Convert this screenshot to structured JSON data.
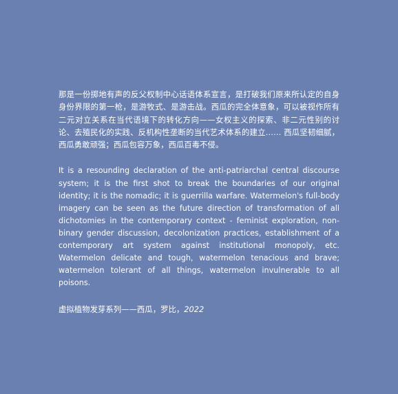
{
  "text": {
    "chinese_paragraph": "那是一份掷地有声的反父权制中心话语体系宣言，是打破我们原来所认定的自身身份界限的第一枪，是游牧式、是游击战。西瓜的完全体意象，可以被视作所有二元对立关系在当代语境下的转化方向——女权主义的探索、非二元性别的讨论、去殖民化的实践、反机构性垄断的当代艺术体系的建立…… 西瓜坚韧细腻，西瓜勇敢顽强；西瓜包容万象，西瓜百毒不侵。",
    "english_paragraph": "It is a resounding declaration of the anti-patriarchal central discourse system; it is the first shot to break the boundaries of our original identity; it is the nomadic; it is guerrilla warfare. Watermelon's full-body imagery can be seen as the future direction of transformation of all dichotomies in the contemporary context - feminist exploration, non-binary gender discussion, decolonization practices, establishment of a contemporary art system against institutional monopoly, etc. Watermelon delicate and tough, watermelon tenacious and brave; watermelon tolerant of all things, watermelon invulnerable to all poisons.",
    "caption_title": "虚拟植物发芽系列——西瓜，罗比，",
    "caption_year": "2022"
  },
  "colors": {
    "background": "#6a80b1",
    "text": "#ffffff"
  }
}
